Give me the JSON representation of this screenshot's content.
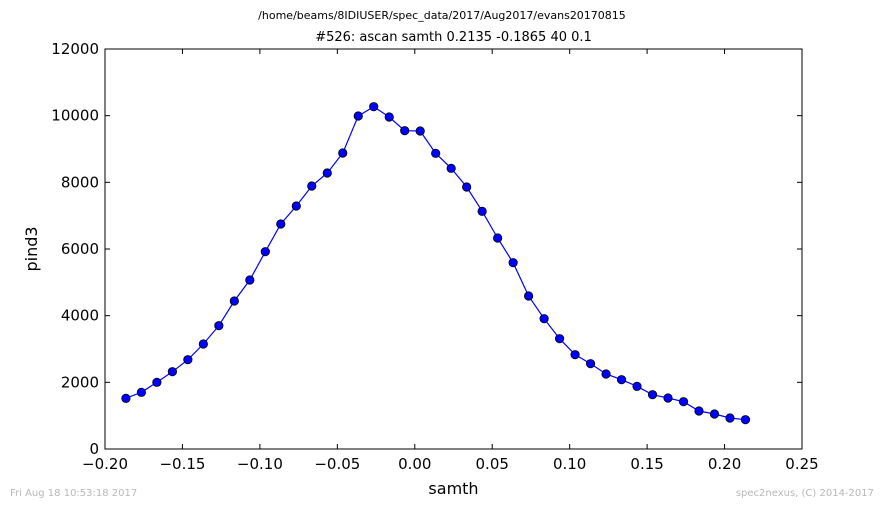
{
  "chart_data": {
    "type": "line",
    "suptitle": "/home/beams/8IDIUSER/spec_data/2017/Aug2017/evans20170815",
    "title": "#526: ascan  samth 0.2135 -0.1865  40 0.1",
    "xlabel": "samth",
    "ylabel": "pind3",
    "xlim": [
      -0.2,
      0.25
    ],
    "ylim": [
      0,
      12000
    ],
    "xticks": [
      -0.2,
      -0.15,
      -0.1,
      -0.05,
      0.0,
      0.05,
      0.1,
      0.15,
      0.2,
      0.25
    ],
    "xtick_labels": [
      "−0.20",
      "−0.15",
      "−0.10",
      "−0.05",
      "0.00",
      "0.05",
      "0.10",
      "0.15",
      "0.20",
      "0.25"
    ],
    "yticks": [
      0,
      2000,
      4000,
      6000,
      8000,
      10000,
      12000
    ],
    "ytick_labels": [
      "0",
      "2000",
      "4000",
      "6000",
      "8000",
      "10000",
      "12000"
    ],
    "grid": false,
    "series": [
      {
        "color": "#0000ff",
        "marker": "circle",
        "x": [
          -0.1865,
          -0.1765,
          -0.1665,
          -0.1565,
          -0.1465,
          -0.1365,
          -0.1265,
          -0.1165,
          -0.1065,
          -0.0965,
          -0.0865,
          -0.0765,
          -0.0665,
          -0.0565,
          -0.0465,
          -0.0365,
          -0.0265,
          -0.0165,
          -0.0065,
          0.0035,
          0.0135,
          0.0235,
          0.0335,
          0.0435,
          0.0535,
          0.0635,
          0.0735,
          0.0835,
          0.0935,
          0.1035,
          0.1135,
          0.1235,
          0.1335,
          0.1435,
          0.1535,
          0.1635,
          0.1735,
          0.1835,
          0.1935,
          0.2035,
          0.2135
        ],
        "y": [
          1520,
          1700,
          2000,
          2320,
          2680,
          3150,
          3700,
          4440,
          5070,
          5920,
          6750,
          7290,
          7890,
          8280,
          8880,
          9990,
          10270,
          9960,
          9550,
          9540,
          8870,
          8420,
          7860,
          7130,
          6330,
          5590,
          4590,
          3910,
          3310,
          2830,
          2560,
          2250,
          2080,
          1880,
          1630,
          1530,
          1420,
          1140,
          1050,
          930,
          880
        ]
      }
    ]
  },
  "footer": {
    "timestamp": "Fri Aug 18 10:53:18 2017",
    "credit": "spec2nexus, (C) 2014-2017"
  }
}
